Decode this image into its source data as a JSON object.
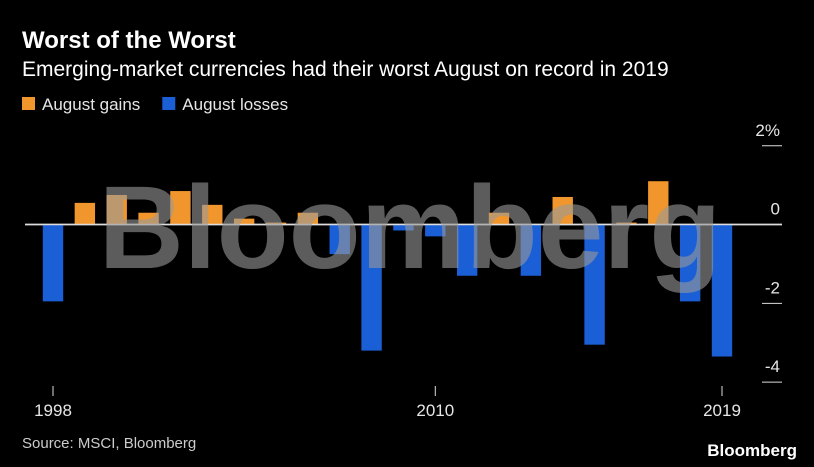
{
  "chart_data": {
    "type": "bar",
    "title": "Worst of the Worst",
    "subtitle": "Emerging-market currencies had their worst August on record in 2019",
    "x": [
      1998,
      1999,
      2000,
      2001,
      2002,
      2003,
      2004,
      2005,
      2006,
      2007,
      2008,
      2009,
      2010,
      2011,
      2012,
      2013,
      2014,
      2015,
      2016,
      2017,
      2018,
      2019
    ],
    "series": [
      {
        "name": "August gains",
        "color": "#f0962c",
        "values": [
          null,
          0.55,
          0.75,
          0.3,
          0.85,
          0.5,
          0.15,
          0.05,
          0.3,
          null,
          null,
          null,
          null,
          null,
          0.3,
          null,
          0.7,
          null,
          0.05,
          1.1,
          null,
          null
        ]
      },
      {
        "name": "August losses",
        "color": "#1a5fd6",
        "values": [
          -1.95,
          null,
          null,
          null,
          null,
          null,
          null,
          null,
          null,
          -0.75,
          -3.2,
          -0.15,
          -0.3,
          -1.3,
          null,
          -1.3,
          null,
          -3.05,
          null,
          null,
          -1.95,
          -3.35
        ]
      }
    ],
    "xlim": [
      1998,
      2019
    ],
    "xticks": [
      1998,
      2010,
      2019
    ],
    "ylim": [
      -4.2,
      2.4
    ],
    "yticks": [
      {
        "value": 2,
        "label": "2%"
      },
      0,
      -2,
      -4
    ],
    "source": "Source: MSCI, Bloomberg",
    "watermark": "Bloomberg",
    "logo": "Bloomberg"
  }
}
